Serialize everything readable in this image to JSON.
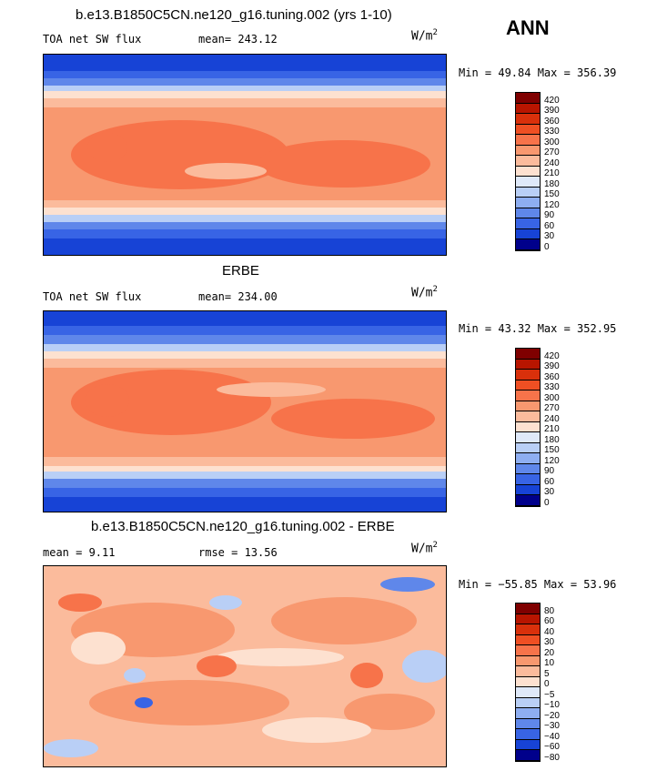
{
  "season": "ANN",
  "unit_base": "W/m",
  "unit_exp": "2",
  "panels": [
    {
      "title": "b.e13.B1850C5CN.ne120_g16.tuning.002 (yrs 1-10)",
      "left_label": "TOA net SW flux",
      "stat_label": "mean= 243.12",
      "minmax": "Min =  49.84 Max = 356.39",
      "levels": [
        "420",
        "390",
        "360",
        "330",
        "300",
        "270",
        "240",
        "210",
        "180",
        "150",
        "120",
        "90",
        "60",
        "30",
        "0"
      ]
    },
    {
      "title": "ERBE",
      "left_label": "TOA net SW flux",
      "stat_label": "mean= 234.00",
      "minmax": "Min =  43.32 Max = 352.95",
      "levels": [
        "420",
        "390",
        "360",
        "330",
        "300",
        "270",
        "240",
        "210",
        "180",
        "150",
        "120",
        "90",
        "60",
        "30",
        "0"
      ]
    },
    {
      "title": "b.e13.B1850C5CN.ne120_g16.tuning.002 - ERBE",
      "left_label": "mean =   9.11",
      "stat_label": "rmse =   13.56",
      "minmax": "Min = −55.85 Max =  53.96",
      "levels": [
        "80",
        "60",
        "40",
        "30",
        "20",
        "10",
        "5",
        "0",
        "−5",
        "−10",
        "−20",
        "−30",
        "−40",
        "−60",
        "−80"
      ]
    }
  ],
  "colors": {
    "scale": [
      "#7f0000",
      "#b81500",
      "#d9300b",
      "#ef4f23",
      "#f7734a",
      "#f8986f",
      "#fbbb9c",
      "#fde1d0",
      "#dfe9f9",
      "#b9cff6",
      "#8eaef1",
      "#5f87ea",
      "#3864e5",
      "#1743d6",
      "#00008b"
    ]
  }
}
